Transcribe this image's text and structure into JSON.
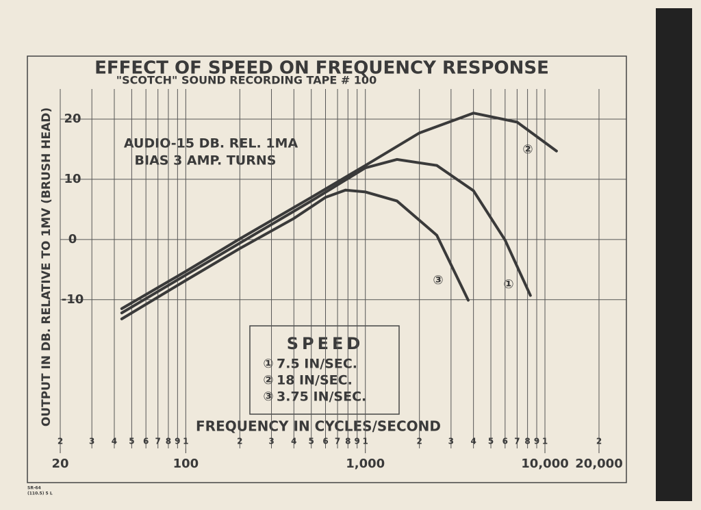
{
  "chart_data": {
    "type": "line",
    "title": "EFFECT OF SPEED ON FREQUENCY RESPONSE",
    "subtitle": "\"SCOTCH\" SOUND RECORDING TAPE # 100",
    "x_label": "FREQUENCY IN CYCLES/SECOND",
    "y_label": "OUTPUT IN DB. RELATIVE TO 1MV (BRUSH HEAD)",
    "annotations": [
      "AUDIO-15 DB. REL. 1MA",
      "BIAS 3 AMP. TURNS"
    ],
    "legend_title": "SPEED",
    "footnote": [
      "SR-64",
      "(110.5) 5 L"
    ],
    "log_x": true,
    "grid": true,
    "xlim": [
      20,
      20000
    ],
    "ylim": [
      -33,
      25
    ],
    "xticks": [
      {
        "value": 20,
        "label": "20"
      },
      {
        "value": 100,
        "label": "100"
      },
      {
        "value": 1000,
        "label": "1,000"
      },
      {
        "value": 10000,
        "label": "10,000"
      },
      {
        "value": 20000,
        "label": "20,000"
      }
    ],
    "xminor_ticks": [
      {
        "value": 20,
        "label": "2"
      },
      {
        "value": 30,
        "label": "3"
      },
      {
        "value": 40,
        "label": "4"
      },
      {
        "value": 50,
        "label": "5"
      },
      {
        "value": 60,
        "label": "6"
      },
      {
        "value": 70,
        "label": "7"
      },
      {
        "value": 80,
        "label": "8"
      },
      {
        "value": 90,
        "label": "9"
      },
      {
        "value": 100,
        "label": "1"
      },
      {
        "value": 200,
        "label": "2"
      },
      {
        "value": 300,
        "label": "3"
      },
      {
        "value": 400,
        "label": "4"
      },
      {
        "value": 500,
        "label": "5"
      },
      {
        "value": 600,
        "label": "6"
      },
      {
        "value": 700,
        "label": "7"
      },
      {
        "value": 800,
        "label": "8"
      },
      {
        "value": 900,
        "label": "9"
      },
      {
        "value": 1000,
        "label": "1"
      },
      {
        "value": 2000,
        "label": "2"
      },
      {
        "value": 3000,
        "label": "3"
      },
      {
        "value": 4000,
        "label": "4"
      },
      {
        "value": 5000,
        "label": "5"
      },
      {
        "value": 6000,
        "label": "6"
      },
      {
        "value": 7000,
        "label": "7"
      },
      {
        "value": 8000,
        "label": "8"
      },
      {
        "value": 9000,
        "label": "9"
      },
      {
        "value": 10000,
        "label": "1"
      },
      {
        "value": 20000,
        "label": "2"
      }
    ],
    "yticks": [
      -10,
      0,
      10,
      20
    ],
    "series": [
      {
        "name": "7.5 IN/SEC.",
        "label": "①",
        "color": "#3a3a3a",
        "x": [
          44,
          100,
          200,
          500,
          1000,
          1500,
          2500,
          4000,
          6000,
          8300
        ],
        "values": [
          -12.2,
          -5.9,
          -0.6,
          6.4,
          11.9,
          13.3,
          12.3,
          8.1,
          -0.1,
          -9.3
        ]
      },
      {
        "name": "18 IN/SEC.",
        "label": "②",
        "color": "#3a3a3a",
        "x": [
          44,
          100,
          200,
          500,
          1000,
          2000,
          4000,
          7000,
          11600
        ],
        "values": [
          -11.5,
          -5.3,
          0.1,
          7.0,
          12.3,
          17.7,
          21,
          19.5,
          14.7
        ]
      },
      {
        "name": "3.75 IN/SEC.",
        "label": "③",
        "color": "#3a3a3a",
        "x": [
          44,
          100,
          200,
          400,
          600,
          775,
          1000,
          1500,
          2500,
          3740
        ],
        "values": [
          -13.2,
          -6.8,
          -1.5,
          3.5,
          7.0,
          8.2,
          7.9,
          6.4,
          0.7,
          -10.1
        ]
      }
    ]
  }
}
